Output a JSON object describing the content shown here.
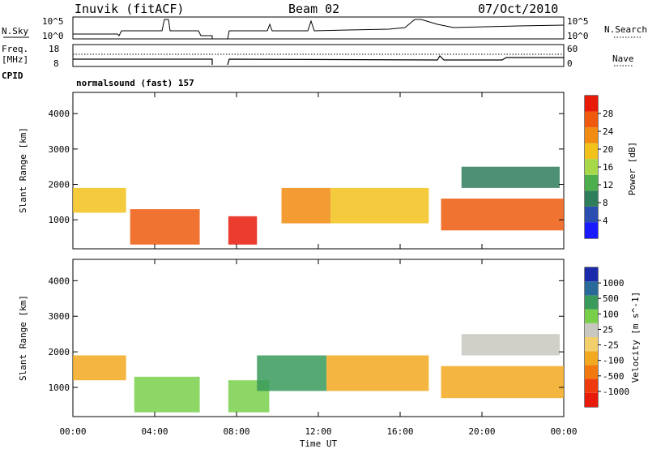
{
  "header": {
    "station": "Inuvik (fitACF)",
    "beam": "Beam 02",
    "date": "07/Oct/2010"
  },
  "top_panels": {
    "nsky_label": "N.Sky",
    "nsearch_label": "N.Search",
    "nsky_ticks": [
      "10^5",
      "10^0"
    ],
    "nsky_right_ticks": [
      "10^5",
      "10^0"
    ],
    "freq_label_1": "Freq.",
    "freq_label_2": "[MHz]",
    "freq_ticks": [
      "18",
      "8"
    ],
    "nave_label": "Nave",
    "nave_ticks": [
      "60",
      "0"
    ],
    "cpid_label": "CPID",
    "cpid_value": "normalsound (fast) 157"
  },
  "colors": {
    "power": [
      "#1a1aff",
      "#2a4fb0",
      "#2e7d5b",
      "#4cae4c",
      "#a6d84a",
      "#f2c21b",
      "#f28b11",
      "#ef5a0e",
      "#e81a0a"
    ],
    "velocity": [
      "#e81a0a",
      "#ef3a0e",
      "#f2790f",
      "#f2a91f",
      "#f2cf6a",
      "#c8c8c0",
      "#78d04a",
      "#3a9a5a",
      "#2a6a9a",
      "#1a2aaa"
    ]
  },
  "chart_data": [
    {
      "type": "heatmap",
      "title": "",
      "quantity": "Power",
      "xlabel": "",
      "ylabel": "Slant Range [km]",
      "yticks": [
        1000,
        2000,
        3000,
        4000
      ],
      "ylim": [
        180,
        4600
      ],
      "xlim_hours": [
        0,
        24
      ],
      "colorbar_label": "Power [dB]",
      "colorbar_ticks": [
        4,
        8,
        12,
        16,
        20,
        24,
        28
      ],
      "echo_regions": [
        {
          "t_start": 0.0,
          "t_end": 2.6,
          "range_start": 1200,
          "range_end": 1900,
          "level": 16
        },
        {
          "t_start": 2.8,
          "t_end": 6.2,
          "range_start": 300,
          "range_end": 1300,
          "level": 24
        },
        {
          "t_start": 7.6,
          "t_end": 9.0,
          "range_start": 300,
          "range_end": 1100,
          "level": 28
        },
        {
          "t_start": 10.2,
          "t_end": 12.6,
          "range_start": 900,
          "range_end": 1900,
          "level": 20
        },
        {
          "t_start": 12.6,
          "t_end": 17.4,
          "range_start": 900,
          "range_end": 1900,
          "level": 16
        },
        {
          "t_start": 18.0,
          "t_end": 24.0,
          "range_start": 700,
          "range_end": 1600,
          "level": 24
        },
        {
          "t_start": 19.0,
          "t_end": 23.8,
          "range_start": 1900,
          "range_end": 2500,
          "level": 8
        }
      ]
    },
    {
      "type": "heatmap",
      "title": "",
      "quantity": "Velocity",
      "xlabel": "Time UT",
      "ylabel": "Slant Range [km]",
      "yticks": [
        1000,
        2000,
        3000,
        4000
      ],
      "ylim": [
        180,
        4600
      ],
      "xticks": [
        "00:00",
        "04:00",
        "08:00",
        "12:00",
        "16:00",
        "20:00",
        "00:00"
      ],
      "colorbar_label": "Velocity [m s^-1]",
      "colorbar_ticks": [
        1000,
        500,
        100,
        25,
        -25,
        -100,
        -500,
        -1000
      ],
      "echo_regions": [
        {
          "t_start": 0.0,
          "t_end": 2.6,
          "range_start": 1200,
          "range_end": 1900,
          "level": -100
        },
        {
          "t_start": 3.0,
          "t_end": 6.2,
          "range_start": 300,
          "range_end": 1300,
          "level": 100
        },
        {
          "t_start": 7.6,
          "t_end": 9.6,
          "range_start": 300,
          "range_end": 1200,
          "level": 100
        },
        {
          "t_start": 9.0,
          "t_end": 12.4,
          "range_start": 900,
          "range_end": 1900,
          "level": 500
        },
        {
          "t_start": 12.4,
          "t_end": 17.4,
          "range_start": 900,
          "range_end": 1900,
          "level": -100
        },
        {
          "t_start": 18.0,
          "t_end": 24.0,
          "range_start": 700,
          "range_end": 1600,
          "level": -100
        },
        {
          "t_start": 19.0,
          "t_end": 23.8,
          "range_start": 1900,
          "range_end": 2500,
          "level": 25
        }
      ]
    }
  ]
}
